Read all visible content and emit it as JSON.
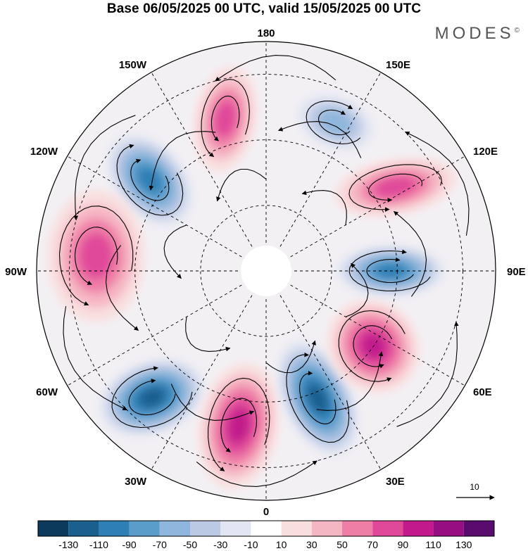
{
  "title": "Base 06/05/2025 00 UTC, valid 15/05/2025 00 UTC",
  "brand": {
    "name": "MODES",
    "mark": "©"
  },
  "longitude_labels": {
    "top": "180",
    "bottom": "0",
    "left": "90W",
    "right": "90E",
    "upper_left_1": "150W",
    "upper_left_2": "120W",
    "lower_left_1": "60W",
    "lower_left_2": "30W",
    "upper_right_1": "150E",
    "upper_right_2": "120E",
    "lower_right_1": "60E",
    "lower_right_2": "30E"
  },
  "reference_vector": {
    "label": "10"
  },
  "colorbar": {
    "colors": [
      "#0b3a5c",
      "#1a5f8e",
      "#2d7fb5",
      "#5a9dcb",
      "#8fb6dc",
      "#bcc9e4",
      "#e2e6f2",
      "#ffffff",
      "#f9dede",
      "#f5b6c3",
      "#ef7ea7",
      "#e0489a",
      "#c21a8c",
      "#930f82",
      "#5a0b6e"
    ],
    "ticks": [
      "-130",
      "-110",
      "-90",
      "-70",
      "-50",
      "-30",
      "-10",
      "10",
      "30",
      "50",
      "70",
      "90",
      "110",
      "130"
    ]
  },
  "anomaly_centers": [
    {
      "id": "n-atlantic-low",
      "value": -130,
      "lon": -42,
      "colat": 52,
      "rx": 62,
      "ry": 42,
      "rot": -20
    },
    {
      "id": "n-atlantic-high",
      "value": 100,
      "lon": -10,
      "colat": 48,
      "rx": 45,
      "ry": 72,
      "rot": 10
    },
    {
      "id": "europe-low",
      "value": -120,
      "lon": 22,
      "colat": 42,
      "rx": 40,
      "ry": 70,
      "rot": -25
    },
    {
      "id": "russia-high",
      "value": 115,
      "lon": 55,
      "colat": 40,
      "rx": 50,
      "ry": 55,
      "rot": -40
    },
    {
      "id": "siberia-low",
      "value": -110,
      "lon": 90,
      "colat": 38,
      "rx": 62,
      "ry": 30,
      "rot": 0
    },
    {
      "id": "e-asia-high",
      "value": 90,
      "lon": 123,
      "colat": 47,
      "rx": 70,
      "ry": 32,
      "rot": -10
    },
    {
      "id": "kamchatka-low",
      "value": -60,
      "lon": 155,
      "colat": 50,
      "rx": 45,
      "ry": 30,
      "rot": 20
    },
    {
      "id": "alaska-high",
      "value": 90,
      "lon": -165,
      "colat": 48,
      "rx": 35,
      "ry": 60,
      "rot": 10
    },
    {
      "id": "canada-w-low",
      "value": -100,
      "lon": -128,
      "colat": 45,
      "rx": 40,
      "ry": 60,
      "rot": -40
    },
    {
      "id": "canada-e-high",
      "value": 80,
      "lon": -95,
      "colat": 52,
      "rx": 55,
      "ry": 75,
      "rot": 0
    }
  ]
}
